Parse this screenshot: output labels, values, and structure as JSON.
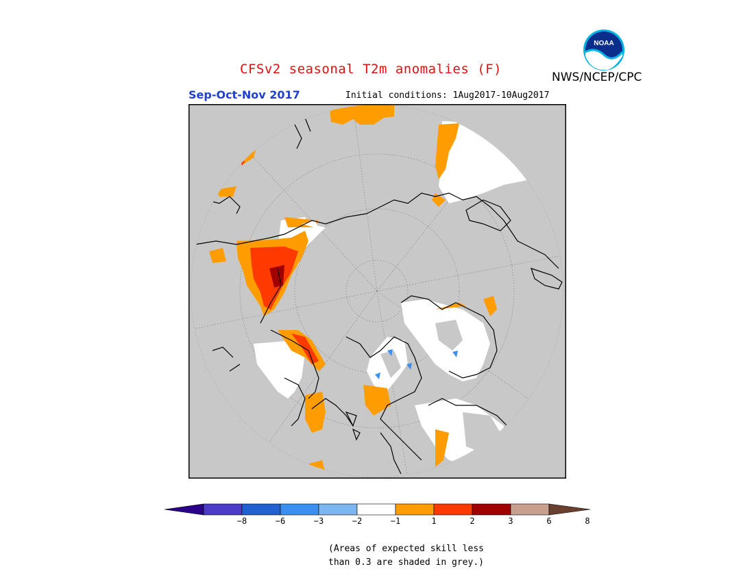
{
  "header": {
    "title": "CFSv2 seasonal T2m anomalies (F)",
    "org": "NWS/NCEP/CPC",
    "period": "Sep-Oct-Nov 2017",
    "initial_conditions": "Initial conditions: 1Aug2017-10Aug2017",
    "logo_text": "NOAA"
  },
  "colorbar": {
    "ticks": [
      "−8",
      "−6",
      "−3",
      "−2",
      "−1",
      "1",
      "2",
      "3",
      "6",
      "8"
    ],
    "colors": [
      "#2a008a",
      "#4a3cc8",
      "#2060d0",
      "#3a8ff0",
      "#7cb6f0",
      "#ffffff",
      "#ff9c00",
      "#ff3a00",
      "#a00000",
      "#c8a090",
      "#6a4030"
    ]
  },
  "footnote": {
    "line1": "(Areas of expected skill less",
    "line2": "than 0.3 are shaded in grey.)"
  },
  "map_colors": {
    "background": "#c8c8c8",
    "skill_mask": "#c8c8c8",
    "neutral": "#ffffff",
    "orange": "#ff9c00",
    "red": "#ff3a00",
    "darkred": "#a00000",
    "blue": "#3a8ff0"
  }
}
